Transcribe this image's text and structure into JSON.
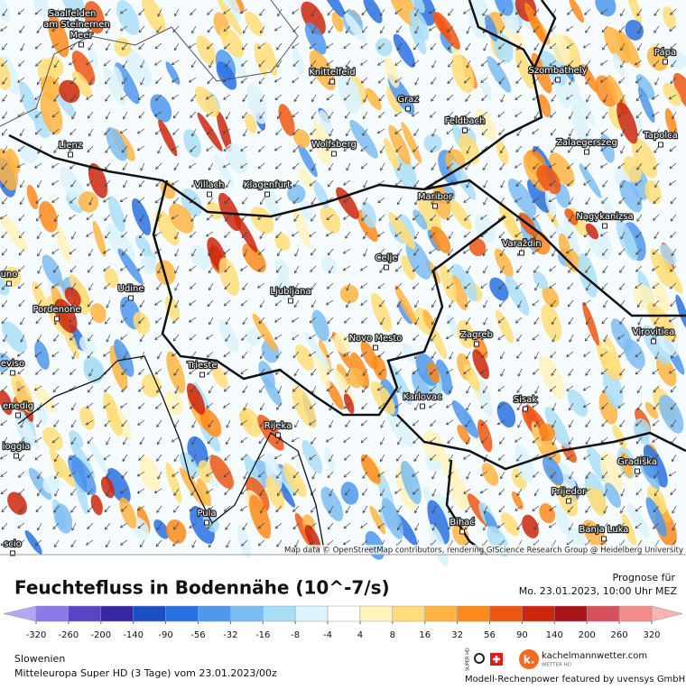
{
  "map": {
    "cities": [
      "Saalfelden",
      "am Steinernen",
      "Meer",
      "Knittelfeld",
      "Szombathely",
      "Pápa",
      "Graz",
      "Feldbach",
      "Lienz",
      "Wolfsberg",
      "Zalaegerszeg",
      "Tapolca",
      "Villach",
      "Klagenfurt",
      "Maribor",
      "Nagykanizsa",
      "Varaždin",
      "Celje",
      "uno",
      "Udine",
      "Ljubljana",
      "Pordenone",
      "Novo Mesto",
      "Zagreb",
      "Virovitica",
      "eviso",
      "Trieste",
      "Karlovac",
      "Sisak",
      "enedig",
      "Rijeka",
      "ioggia",
      "Gradiška",
      "Prijedor",
      "Pula",
      "Bihać",
      "Banja Luka",
      "scio"
    ],
    "attribution": "Map data © OpenStreetMap contributors, rendering GIScience Research Group @ Heidelberg University"
  },
  "header": {
    "title": "Feuchtefluss in Bodennähe (10^-7/s)",
    "forecast_label": "Prognose für",
    "forecast_time": "Mo. 23.01.2023, 10:00 Uhr MEZ"
  },
  "legend": {
    "ticks": [
      -320,
      -260,
      -200,
      -140,
      -90,
      -56,
      -32,
      -16,
      -8,
      -4,
      4,
      8,
      16,
      32,
      56,
      90,
      140,
      200,
      260,
      320
    ],
    "colors": [
      "#b4a6f4",
      "#8c7ae6",
      "#5b43c6",
      "#3627a4",
      "#1c4fc4",
      "#2a70e0",
      "#4f98ec",
      "#7cbcf2",
      "#aadef6",
      "#dcf2fc",
      "#ffffff",
      "#fff2bc",
      "#ffdd78",
      "#ffb443",
      "#ff8a1c",
      "#ee5614",
      "#cc260c",
      "#a8141a",
      "#d8505e",
      "#f28c8c",
      "#f6b4b4"
    ]
  },
  "footer": {
    "region": "Slowenien",
    "model": "Mitteleuropa Super HD (3 Tage) vom 23.01.2023/00z",
    "brand": "kachelmannwetter.com",
    "brand_sub": "WETTER HD",
    "super_hd": "SUPER HD",
    "credit": "Modell-Rechenpower featured by uvensys GmbH"
  }
}
